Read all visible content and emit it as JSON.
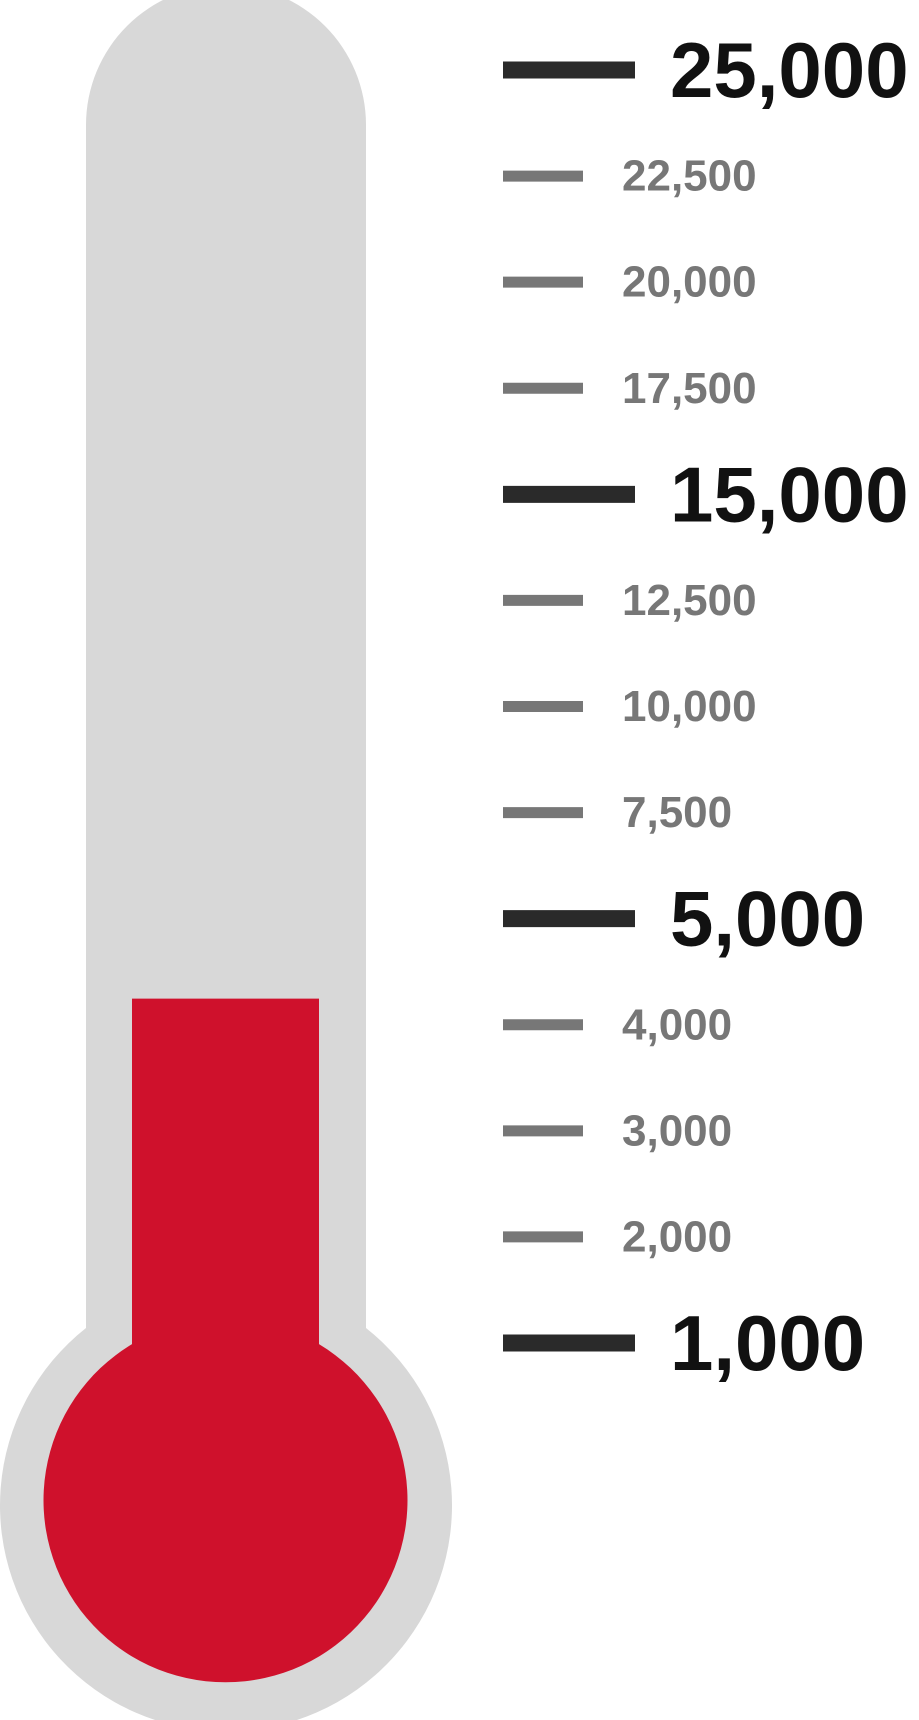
{
  "chart_data": {
    "type": "bar",
    "subtype": "thermometer-gauge",
    "orientation": "vertical",
    "value": 5000,
    "title": "",
    "xlabel": "",
    "ylabel": "",
    "ticks": [
      {
        "value": 25000,
        "label": "25,000",
        "major": true
      },
      {
        "value": 22500,
        "label": "22,500",
        "major": false
      },
      {
        "value": 20000,
        "label": "20,000",
        "major": false
      },
      {
        "value": 17500,
        "label": "17,500",
        "major": false
      },
      {
        "value": 15000,
        "label": "15,000",
        "major": true
      },
      {
        "value": 12500,
        "label": "12,500",
        "major": false
      },
      {
        "value": 10000,
        "label": "10,000",
        "major": false
      },
      {
        "value": 7500,
        "label": "7,500",
        "major": false
      },
      {
        "value": 5000,
        "label": "5,000",
        "major": true
      },
      {
        "value": 4000,
        "label": "4,000",
        "major": false
      },
      {
        "value": 3000,
        "label": "3,000",
        "major": false
      },
      {
        "value": 2000,
        "label": "2,000",
        "major": false
      },
      {
        "value": 1000,
        "label": "1,000",
        "major": true
      }
    ],
    "scale": "piecewise-linear between ticks",
    "grid": false,
    "legend": "none"
  },
  "colors": {
    "tube": "#d8d8d8",
    "fill": "#cf112c",
    "major_tick": "#2a2a2a",
    "minor_tick": "#777777",
    "background": "#ffffff"
  }
}
